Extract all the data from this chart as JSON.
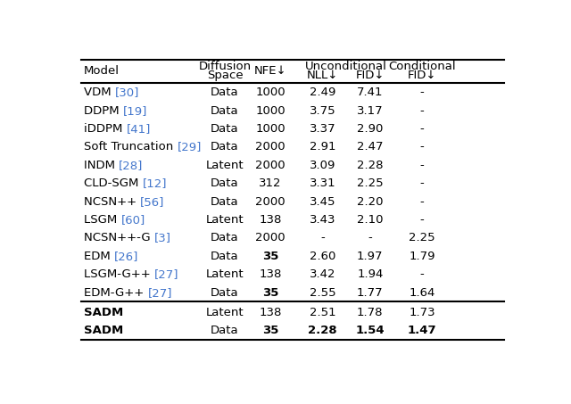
{
  "rows": [
    {
      "model": "VDM",
      "ref": "[30]",
      "space": "Data",
      "nfe": "1000",
      "nll": "2.49",
      "ufid": "7.41",
      "cfid": "-",
      "bold_nfe": false,
      "bold_vals": false,
      "bold_model": false
    },
    {
      "model": "DDPM",
      "ref": "[19]",
      "space": "Data",
      "nfe": "1000",
      "nll": "3.75",
      "ufid": "3.17",
      "cfid": "-",
      "bold_nfe": false,
      "bold_vals": false,
      "bold_model": false
    },
    {
      "model": "iDDPM",
      "ref": "[41]",
      "space": "Data",
      "nfe": "1000",
      "nll": "3.37",
      "ufid": "2.90",
      "cfid": "-",
      "bold_nfe": false,
      "bold_vals": false,
      "bold_model": false
    },
    {
      "model": "Soft Truncation",
      "ref": "[29]",
      "space": "Data",
      "nfe": "2000",
      "nll": "2.91",
      "ufid": "2.47",
      "cfid": "-",
      "bold_nfe": false,
      "bold_vals": false,
      "bold_model": false
    },
    {
      "model": "INDM",
      "ref": "[28]",
      "space": "Latent",
      "nfe": "2000",
      "nll": "3.09",
      "ufid": "2.28",
      "cfid": "-",
      "bold_nfe": false,
      "bold_vals": false,
      "bold_model": false
    },
    {
      "model": "CLD-SGM",
      "ref": "[12]",
      "space": "Data",
      "nfe": "312",
      "nll": "3.31",
      "ufid": "2.25",
      "cfid": "-",
      "bold_nfe": false,
      "bold_vals": false,
      "bold_model": false
    },
    {
      "model": "NCSN++",
      "ref": "[56]",
      "space": "Data",
      "nfe": "2000",
      "nll": "3.45",
      "ufid": "2.20",
      "cfid": "-",
      "bold_nfe": false,
      "bold_vals": false,
      "bold_model": false
    },
    {
      "model": "LSGM",
      "ref": "[60]",
      "space": "Latent",
      "nfe": "138",
      "nll": "3.43",
      "ufid": "2.10",
      "cfid": "-",
      "bold_nfe": false,
      "bold_vals": false,
      "bold_model": false
    },
    {
      "model": "NCSN++-G",
      "ref": "[3]",
      "space": "Data",
      "nfe": "2000",
      "nll": "-",
      "ufid": "-",
      "cfid": "2.25",
      "bold_nfe": false,
      "bold_vals": false,
      "bold_model": false
    },
    {
      "model": "EDM",
      "ref": "[26]",
      "space": "Data",
      "nfe": "35",
      "nll": "2.60",
      "ufid": "1.97",
      "cfid": "1.79",
      "bold_nfe": true,
      "bold_vals": false,
      "bold_model": false
    },
    {
      "model": "LSGM-G++",
      "ref": "[27]",
      "space": "Latent",
      "nfe": "138",
      "nll": "3.42",
      "ufid": "1.94",
      "cfid": "-",
      "bold_nfe": false,
      "bold_vals": false,
      "bold_model": false
    },
    {
      "model": "EDM-G++",
      "ref": "[27]",
      "space": "Data",
      "nfe": "35",
      "nll": "2.55",
      "ufid": "1.77",
      "cfid": "1.64",
      "bold_nfe": true,
      "bold_vals": false,
      "bold_model": false
    }
  ],
  "sadm_rows": [
    {
      "model": "SADM",
      "ref": "",
      "space": "Latent",
      "nfe": "138",
      "nll": "2.51",
      "ufid": "1.78",
      "cfid": "1.73",
      "bold_nfe": false,
      "bold_vals": false,
      "bold_model": true
    },
    {
      "model": "SADM",
      "ref": "",
      "space": "Data",
      "nfe": "35",
      "nll": "2.28",
      "ufid": "1.54",
      "cfid": "1.47",
      "bold_nfe": true,
      "bold_vals": true,
      "bold_model": true
    }
  ],
  "ref_color": "#4477cc",
  "text_color": "#000000",
  "bg_color": "#ffffff",
  "fontsize": 9.5
}
